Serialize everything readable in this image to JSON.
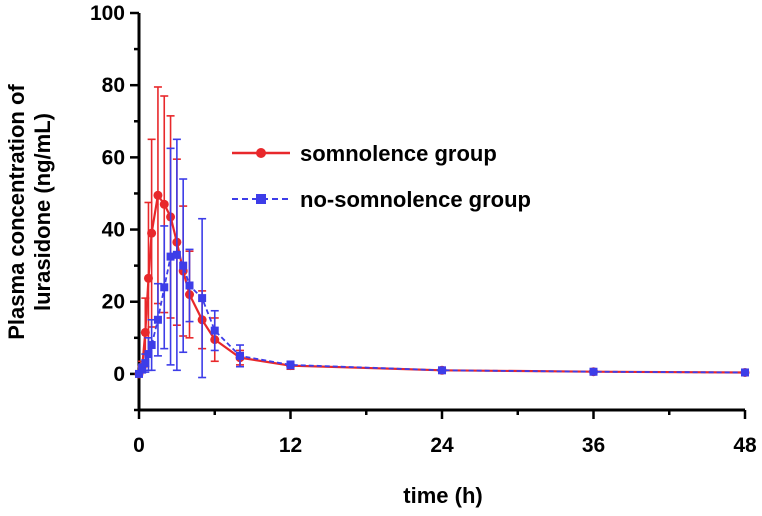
{
  "chart_data": {
    "type": "line",
    "xlabel": "time (h)",
    "ylabel_lines": [
      "Plasma concentration of",
      "lurasidone (ng/mL)"
    ],
    "xlim": [
      0,
      48
    ],
    "ylim": [
      -10,
      100
    ],
    "xticks": [
      0,
      12,
      24,
      36,
      48
    ],
    "yticks": [
      0,
      20,
      40,
      60,
      80,
      100
    ],
    "legend_position": "center-right",
    "series": [
      {
        "name": "somnolence group",
        "color": "#e8282b",
        "marker": "circle",
        "line": "solid",
        "x": [
          0,
          0.25,
          0.5,
          0.75,
          1,
          1.5,
          2,
          2.5,
          3,
          3.5,
          4,
          5,
          6,
          8,
          12,
          24,
          36,
          48
        ],
        "y": [
          0,
          2,
          11.5,
          26.5,
          39,
          49.5,
          47,
          43.5,
          36.5,
          28.5,
          22,
          15,
          9.5,
          4.5,
          2.3,
          1,
          0.6,
          0.4
        ],
        "err": [
          0,
          1.5,
          9.5,
          21,
          26,
          30,
          30,
          28,
          23,
          18,
          12,
          8,
          6,
          2,
          1,
          0.4,
          0.3,
          0.2
        ]
      },
      {
        "name": "no-somnolence group",
        "color": "#3d3de8",
        "marker": "square",
        "line": "dashed",
        "x": [
          0,
          0.25,
          0.5,
          0.75,
          1,
          1.5,
          2,
          2.5,
          3,
          3.5,
          4,
          5,
          6,
          8,
          12,
          24,
          36,
          48
        ],
        "y": [
          0,
          1.5,
          3,
          5.5,
          8,
          15,
          24,
          32.5,
          33,
          30,
          24.5,
          21,
          12,
          5,
          2.5,
          1,
          0.6,
          0.4
        ],
        "err": [
          0,
          1.2,
          2.5,
          4.5,
          7,
          10,
          17,
          30,
          32,
          24,
          10,
          22,
          5.5,
          3,
          1,
          0.4,
          0.3,
          0.2
        ]
      }
    ]
  }
}
